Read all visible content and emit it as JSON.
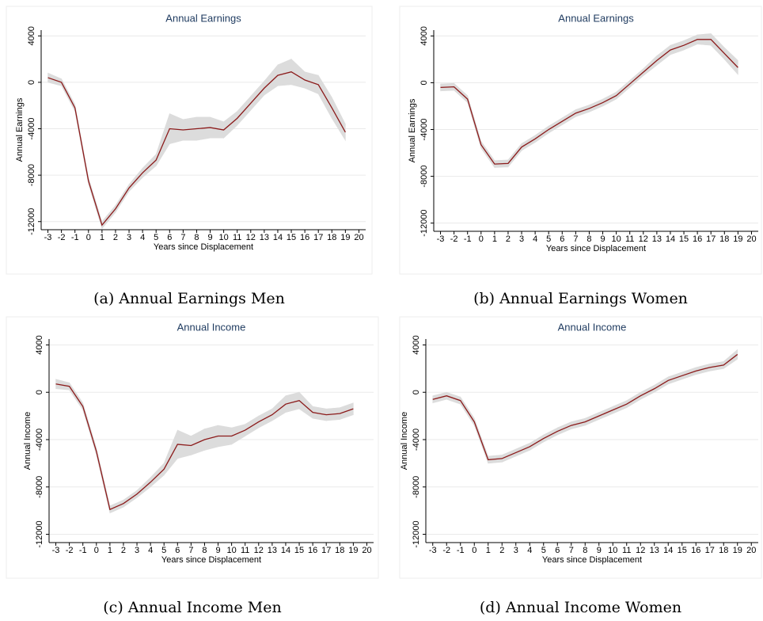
{
  "chart_data": [
    {
      "type": "line",
      "title": "Annual Earnings",
      "xlabel": "Years since Displacement",
      "ylabel": "Annual Earnings",
      "caption": "(a) Annual Earnings Men",
      "x": [
        -3,
        -2,
        -1,
        0,
        1,
        2,
        3,
        4,
        5,
        6,
        7,
        8,
        9,
        10,
        11,
        12,
        13,
        14,
        15,
        16,
        17,
        18,
        19
      ],
      "values": [
        400,
        0,
        -2200,
        -8500,
        -12300,
        -10900,
        -9100,
        -7800,
        -6700,
        -4000,
        -4100,
        -4000,
        -3900,
        -4100,
        -3100,
        -1800,
        -500,
        600,
        900,
        200,
        -200,
        -2200,
        -4300
      ],
      "lower": [
        0,
        -300,
        -2500,
        -8800,
        -12600,
        -11200,
        -9400,
        -8200,
        -7200,
        -5300,
        -5000,
        -5000,
        -4800,
        -4800,
        -3700,
        -2400,
        -1100,
        -300,
        -200,
        -500,
        -1000,
        -3100,
        -5000
      ],
      "upper": [
        800,
        300,
        -1900,
        -8200,
        -12000,
        -10600,
        -8800,
        -7400,
        -6200,
        -2700,
        -3200,
        -3000,
        -3000,
        -3400,
        -2500,
        -1200,
        100,
        1500,
        2000,
        900,
        600,
        -1300,
        -3600
      ],
      "color": "#8b1a1a",
      "band_color": "#dcdcdc",
      "xlim": [
        -3.5,
        20.5
      ],
      "xticks": [
        -3,
        -2,
        -1,
        0,
        1,
        2,
        3,
        4,
        5,
        6,
        7,
        8,
        9,
        10,
        11,
        12,
        13,
        14,
        15,
        16,
        17,
        18,
        19,
        20
      ],
      "ylim": [
        -12700,
        4500
      ],
      "yticks": [
        -12000,
        -8000,
        -4000,
        0,
        4000
      ],
      "grid": true
    },
    {
      "type": "line",
      "title": "Annual Earnings",
      "xlabel": "Years since Displacement",
      "ylabel": "Annual Earnings",
      "caption": "(b) Annual Earnings Women",
      "x": [
        -3,
        -2,
        -1,
        0,
        1,
        2,
        3,
        4,
        5,
        6,
        7,
        8,
        9,
        10,
        11,
        12,
        13,
        14,
        15,
        16,
        17,
        18,
        19
      ],
      "values": [
        -400,
        -350,
        -1400,
        -5300,
        -6950,
        -6900,
        -5500,
        -4800,
        -4000,
        -3300,
        -2600,
        -2200,
        -1700,
        -1100,
        -100,
        900,
        1900,
        2800,
        3200,
        3700,
        3700,
        2500,
        1300
      ],
      "lower": [
        -700,
        -650,
        -1700,
        -5600,
        -7250,
        -7200,
        -5800,
        -5100,
        -4300,
        -3600,
        -2900,
        -2500,
        -2000,
        -1400,
        -400,
        600,
        1500,
        2400,
        2800,
        3300,
        3200,
        2000,
        700
      ],
      "upper": [
        -100,
        -50,
        -1100,
        -5000,
        -6650,
        -6600,
        -5200,
        -4500,
        -3700,
        -3000,
        -2300,
        -1900,
        -1400,
        -800,
        200,
        1200,
        2300,
        3200,
        3600,
        4100,
        4200,
        3000,
        1900
      ],
      "color": "#8b1a1a",
      "band_color": "#dcdcdc",
      "xlim": [
        -3.5,
        20.5
      ],
      "xticks": [
        -3,
        -2,
        -1,
        0,
        1,
        2,
        3,
        4,
        5,
        6,
        7,
        8,
        9,
        10,
        11,
        12,
        13,
        14,
        15,
        16,
        17,
        18,
        19,
        20
      ],
      "ylim": [
        -12700,
        4500
      ],
      "yticks": [
        -12000,
        -8000,
        -4000,
        0,
        4000
      ],
      "grid": true
    },
    {
      "type": "line",
      "title": "Annual Income",
      "xlabel": "Years since Displacement",
      "ylabel": "Annual Income",
      "caption": "(c) Annual Income Men",
      "x": [
        -3,
        -2,
        -1,
        0,
        1,
        2,
        3,
        4,
        5,
        6,
        7,
        8,
        9,
        10,
        11,
        12,
        13,
        14,
        15,
        16,
        17,
        18,
        19
      ],
      "values": [
        700,
        500,
        -1200,
        -5000,
        -9900,
        -9400,
        -8600,
        -7600,
        -6500,
        -4400,
        -4500,
        -4000,
        -3700,
        -3700,
        -3200,
        -2500,
        -1900,
        -1000,
        -700,
        -1700,
        -1900,
        -1800,
        -1400
      ],
      "lower": [
        300,
        200,
        -1500,
        -5300,
        -10200,
        -9700,
        -8900,
        -8000,
        -7000,
        -5600,
        -5300,
        -4900,
        -4600,
        -4400,
        -3700,
        -3000,
        -2400,
        -1700,
        -1400,
        -2200,
        -2400,
        -2300,
        -1900
      ],
      "upper": [
        1100,
        800,
        -900,
        -4700,
        -9600,
        -9100,
        -8300,
        -7200,
        -6000,
        -3200,
        -3700,
        -3100,
        -2800,
        -3000,
        -2700,
        -2000,
        -1400,
        -300,
        0,
        -1200,
        -1400,
        -1300,
        -900
      ],
      "color": "#8b1a1a",
      "band_color": "#dcdcdc",
      "xlim": [
        -3.5,
        20.5
      ],
      "xticks": [
        -3,
        -2,
        -1,
        0,
        1,
        2,
        3,
        4,
        5,
        6,
        7,
        8,
        9,
        10,
        11,
        12,
        13,
        14,
        15,
        16,
        17,
        18,
        19,
        20
      ],
      "ylim": [
        -12700,
        4500
      ],
      "yticks": [
        -12000,
        -8000,
        -4000,
        0,
        4000
      ],
      "grid": true
    },
    {
      "type": "line",
      "title": "Annual Income",
      "xlabel": "Years since Displacement",
      "ylabel": "Annual Income",
      "caption": "(d) Annual Income Women",
      "x": [
        -3,
        -2,
        -1,
        0,
        1,
        2,
        3,
        4,
        5,
        6,
        7,
        8,
        9,
        10,
        11,
        12,
        13,
        14,
        15,
        16,
        17,
        18,
        19
      ],
      "values": [
        -600,
        -300,
        -700,
        -2500,
        -5700,
        -5600,
        -5100,
        -4600,
        -3900,
        -3300,
        -2800,
        -2500,
        -2000,
        -1500,
        -1000,
        -300,
        300,
        1000,
        1400,
        1800,
        2100,
        2300,
        3200
      ],
      "lower": [
        -900,
        -600,
        -1000,
        -2800,
        -6000,
        -5900,
        -5400,
        -4900,
        -4200,
        -3600,
        -3100,
        -2800,
        -2300,
        -1800,
        -1300,
        -600,
        0,
        700,
        1100,
        1500,
        1800,
        2000,
        2800
      ],
      "upper": [
        -300,
        0,
        -400,
        -2200,
        -5400,
        -5300,
        -4800,
        -4300,
        -3600,
        -3000,
        -2500,
        -2200,
        -1700,
        -1200,
        -700,
        0,
        600,
        1300,
        1700,
        2100,
        2400,
        2600,
        3600
      ],
      "color": "#8b1a1a",
      "band_color": "#dcdcdc",
      "xlim": [
        -3.5,
        20.5
      ],
      "xticks": [
        -3,
        -2,
        -1,
        0,
        1,
        2,
        3,
        4,
        5,
        6,
        7,
        8,
        9,
        10,
        11,
        12,
        13,
        14,
        15,
        16,
        17,
        18,
        19,
        20
      ],
      "ylim": [
        -12700,
        4500
      ],
      "yticks": [
        -12000,
        -8000,
        -4000,
        0,
        4000
      ],
      "grid": true
    }
  ]
}
